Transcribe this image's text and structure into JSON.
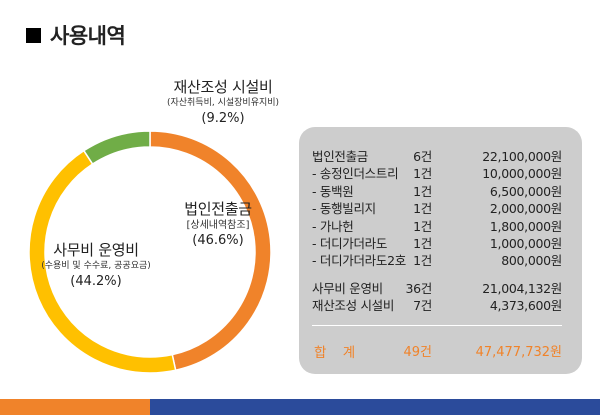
{
  "page": {
    "title": "사용내역"
  },
  "colors": {
    "corporate": "#f0832a",
    "office": "#ffc000",
    "asset": "#70ad47",
    "total": "#f0832a",
    "bar_left": "#f0832a",
    "bar_right": "#2b4b9b"
  },
  "labels": {
    "asset": {
      "name": "재산조성 시설비",
      "sub": "(자산취득비, 시설장비유지비)",
      "pct": "(9.2%)"
    },
    "corp": {
      "name": "법인전출금",
      "sub": "[상세내역참조]",
      "pct": "(46.6%)"
    },
    "office": {
      "name": "사무비 운영비",
      "sub": "(수용비 및  수수료, 공공요금)",
      "pct": "(44.2%)"
    }
  },
  "table": {
    "rows": [
      {
        "name": "법인전출금",
        "count": "6건",
        "amount": "22,100,000원"
      },
      {
        "name": "- 송정인더스트리",
        "count": "1건",
        "amount": "10,000,000원"
      },
      {
        "name": "- 동백원",
        "count": "1건",
        "amount": "6,500,000원"
      },
      {
        "name": "- 동행빌리지",
        "count": "1건",
        "amount": "2,000,000원"
      },
      {
        "name": "- 가나헌",
        "count": "1건",
        "amount": "1,800,000원"
      },
      {
        "name": "- 더디가더라도",
        "count": "1건",
        "amount": "1,000,000원"
      },
      {
        "name": "- 더디가더라도2호",
        "count": "1건",
        "amount": "800,000원"
      }
    ],
    "rows2": [
      {
        "name": "사무비 운영비",
        "count": "36건",
        "amount": "21,004,132원"
      },
      {
        "name": "재산조성 시설비",
        "count": "7건",
        "amount": "4,373,600원"
      }
    ],
    "total": {
      "name": "합 계",
      "count": "49건",
      "amount": "47,477,732원"
    }
  },
  "chart_data": {
    "type": "pie",
    "categories": [
      "법인전출금",
      "사무비 운영비",
      "재산조성 시설비"
    ],
    "values": [
      46.6,
      44.2,
      9.2
    ],
    "colors": [
      "#f0832a",
      "#ffc000",
      "#70ad47"
    ],
    "donut": true
  }
}
